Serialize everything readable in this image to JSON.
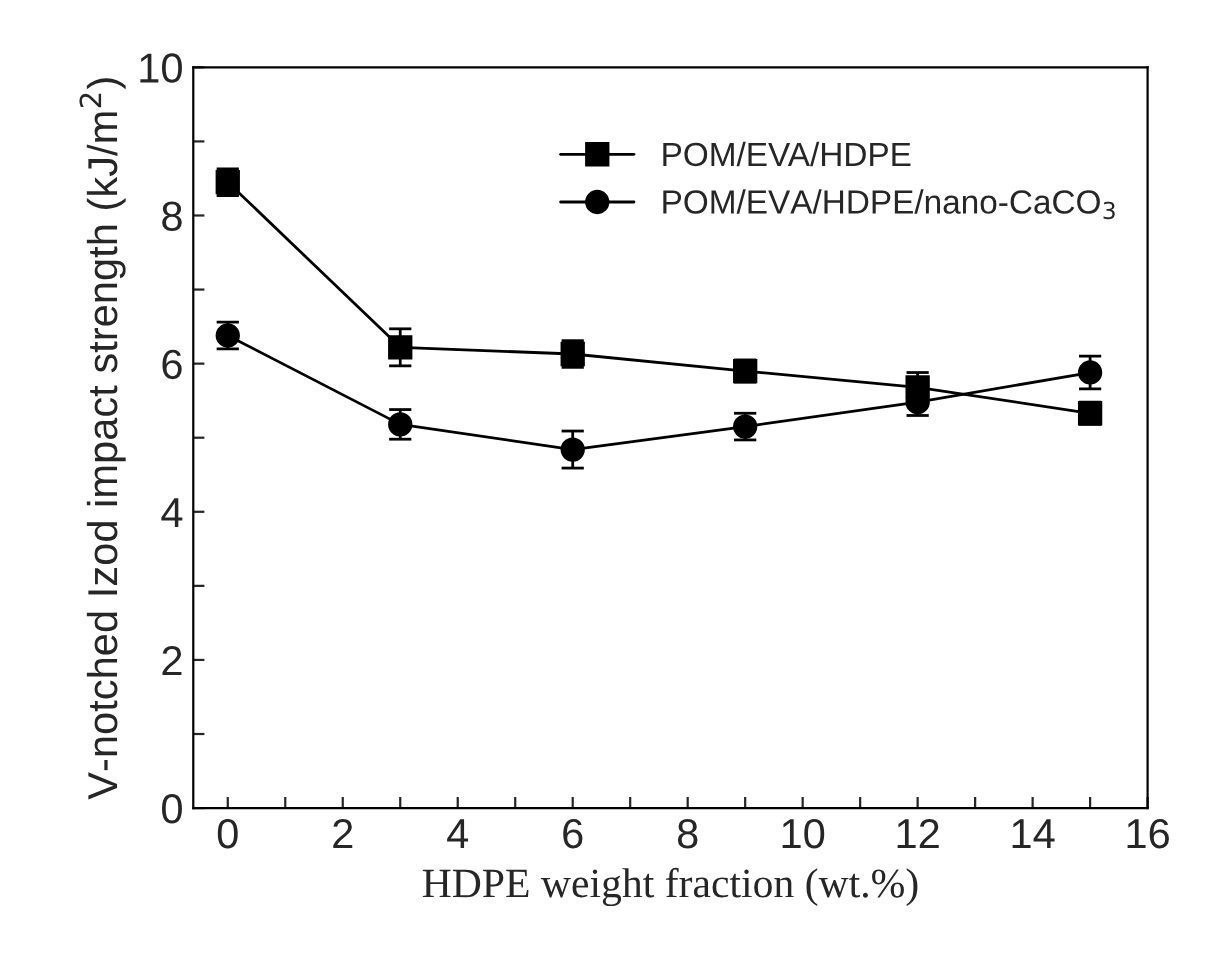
{
  "chart_data": {
    "type": "line",
    "xlabel": "HDPE weight fraction (wt.%)",
    "ylabel": "V-notched Izod impact strength (kJ/m$^{2}$)",
    "x": [
      0,
      3,
      6,
      9,
      12,
      15
    ],
    "series": [
      {
        "name": "POM/EVA/HDPE",
        "color": "#000000",
        "marker": "square",
        "values": [
          8.45,
          6.22,
          6.13,
          5.9,
          5.68,
          5.33
        ],
        "errors": [
          0.18,
          0.25,
          0.18,
          0.15,
          0.2,
          0.15
        ]
      },
      {
        "name": "POM/EVA/HDPE/nano-CaCO$_{3}$",
        "color": "#000000",
        "marker": "circle",
        "values": [
          6.38,
          5.18,
          4.84,
          5.15,
          5.48,
          5.88
        ],
        "errors": [
          0.18,
          0.2,
          0.25,
          0.18,
          0.18,
          0.22
        ]
      }
    ],
    "xlim": [
      -0.6,
      16
    ],
    "xticks": [
      0,
      {
        "value": 1,
        "label": null
      },
      2,
      {
        "value": 3,
        "label": null
      },
      4,
      {
        "value": 5,
        "label": null
      },
      6,
      {
        "value": 7,
        "label": null
      },
      8,
      {
        "value": 9,
        "label": null
      },
      10,
      {
        "value": 11,
        "label": null
      },
      12,
      {
        "value": 13,
        "label": null
      },
      14,
      {
        "value": 15,
        "label": null
      },
      16
    ],
    "ylim": [
      0,
      10
    ],
    "yticks": [
      0,
      {
        "value": 1,
        "label": null
      },
      2,
      {
        "value": 3,
        "label": null
      },
      4,
      {
        "value": 5,
        "label": null
      },
      6,
      {
        "value": 7,
        "label": null
      },
      8,
      {
        "value": 9,
        "label": null
      },
      10
    ],
    "legend": "top right",
    "grid": false,
    "line_style": "solid"
  }
}
